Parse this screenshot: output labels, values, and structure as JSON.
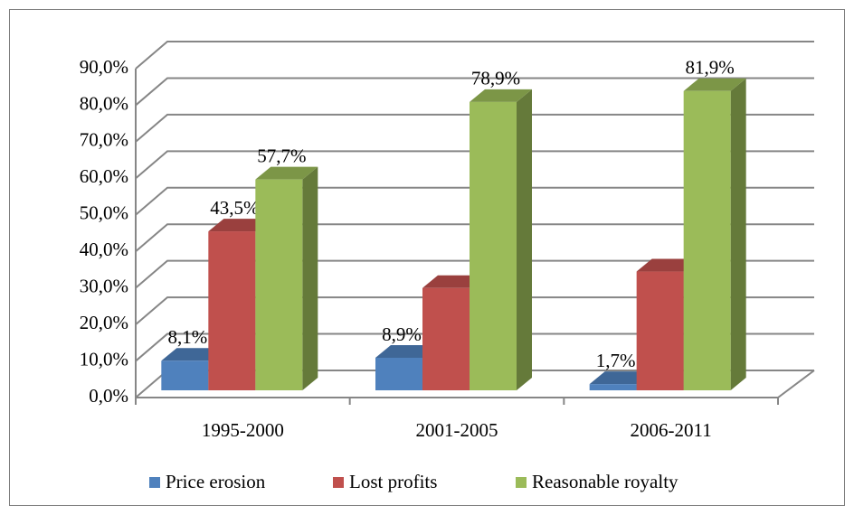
{
  "chart_data": {
    "type": "bar3d",
    "categories": [
      "1995-2000",
      "2001-2005",
      "2006-2011"
    ],
    "series": [
      {
        "name": "Price erosion",
        "color": "#4f81bd",
        "values": [
          8.1,
          8.9,
          1.7
        ],
        "value_labels": [
          "8,1%",
          "8,9%",
          "1,7%"
        ]
      },
      {
        "name": "Lost profits",
        "color": "#c0504d",
        "values": [
          43.5,
          28,
          32.5
        ],
        "value_labels": [
          "43,5%",
          null,
          null
        ]
      },
      {
        "name": "Reasonable royalty",
        "color": "#9bbb59",
        "values": [
          57.7,
          78.9,
          81.9
        ],
        "value_labels": [
          "57,7%",
          "78,9%",
          "81,9%"
        ]
      }
    ],
    "ylim": [
      0,
      90
    ],
    "yticks": [
      {
        "value": 0,
        "label": "0,0%"
      },
      {
        "value": 10,
        "label": "10,0%"
      },
      {
        "value": 20,
        "label": "20,0%"
      },
      {
        "value": 30,
        "label": "30,0%"
      },
      {
        "value": 40,
        "label": "40,0%"
      },
      {
        "value": 50,
        "label": "50,0%"
      },
      {
        "value": 60,
        "label": "60,0%"
      },
      {
        "value": 70,
        "label": "70,0%"
      },
      {
        "value": 80,
        "label": "80,0%"
      },
      {
        "value": 90,
        "label": "90,0%"
      }
    ],
    "grid": true,
    "legend": "bottom"
  }
}
